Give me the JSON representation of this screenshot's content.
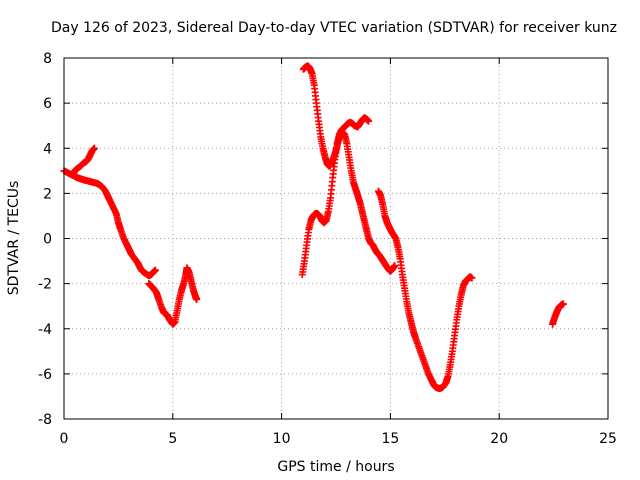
{
  "chart_data": {
    "type": "scatter",
    "title": "Day 126 of 2023, Sidereal Day-to-day VTEC variation (SDTVAR) for receiver kunz",
    "xlabel": "GPS time / hours",
    "ylabel": "SDTVAR / TECUs",
    "xlim": [
      0,
      25
    ],
    "ylim": [
      -8,
      8
    ],
    "xticks": [
      0,
      5,
      10,
      15,
      20,
      25
    ],
    "yticks": [
      -8,
      -6,
      -4,
      -2,
      0,
      2,
      4,
      6,
      8
    ],
    "xtick_labels": [
      "0",
      "5",
      "10",
      "15",
      "20",
      "25"
    ],
    "ytick_labels": [
      "-8",
      "-6",
      "-4",
      "-2",
      "0",
      "2",
      "4",
      "6",
      "8"
    ],
    "grid": true,
    "marker": "plus",
    "color": "#ff0000",
    "series": [
      {
        "segments": [
          [
            [
              0.0,
              3.0
            ],
            [
              0.2,
              2.9
            ],
            [
              0.4,
              2.8
            ],
            [
              0.5,
              3.0
            ],
            [
              0.6,
              3.1
            ],
            [
              0.75,
              3.2
            ],
            [
              0.9,
              3.35
            ],
            [
              1.0,
              3.4
            ],
            [
              1.1,
              3.5
            ],
            [
              1.2,
              3.7
            ],
            [
              1.3,
              3.9
            ],
            [
              1.4,
              4.0
            ]
          ],
          [
            [
              0.4,
              2.85
            ],
            [
              0.5,
              2.75
            ],
            [
              0.6,
              2.7
            ],
            [
              0.75,
              2.65
            ],
            [
              0.9,
              2.6
            ],
            [
              1.1,
              2.55
            ],
            [
              1.3,
              2.5
            ],
            [
              1.5,
              2.45
            ],
            [
              1.6,
              2.4
            ],
            [
              1.75,
              2.3
            ],
            [
              1.9,
              2.1
            ],
            [
              2.0,
              1.9
            ],
            [
              2.1,
              1.7
            ],
            [
              2.25,
              1.4
            ],
            [
              2.4,
              1.1
            ],
            [
              2.5,
              0.7
            ],
            [
              2.6,
              0.4
            ],
            [
              2.75,
              0.0
            ],
            [
              2.9,
              -0.3
            ],
            [
              3.0,
              -0.5
            ],
            [
              3.1,
              -0.7
            ],
            [
              3.25,
              -0.9
            ],
            [
              3.4,
              -1.1
            ],
            [
              3.5,
              -1.3
            ],
            [
              3.6,
              -1.45
            ],
            [
              3.75,
              -1.55
            ],
            [
              3.9,
              -1.65
            ],
            [
              4.0,
              -1.6
            ],
            [
              4.1,
              -1.5
            ],
            [
              4.2,
              -1.4
            ]
          ],
          [
            [
              3.9,
              -2.0
            ],
            [
              4.0,
              -2.1
            ],
            [
              4.1,
              -2.2
            ],
            [
              4.25,
              -2.4
            ],
            [
              4.35,
              -2.7
            ],
            [
              4.5,
              -3.1
            ],
            [
              4.6,
              -3.3
            ],
            [
              4.75,
              -3.4
            ],
            [
              4.85,
              -3.6
            ],
            [
              5.0,
              -3.8
            ],
            [
              5.1,
              -3.7
            ],
            [
              5.2,
              -3.2
            ],
            [
              5.3,
              -2.7
            ],
            [
              5.4,
              -2.3
            ],
            [
              5.5,
              -2.0
            ],
            [
              5.6,
              -1.6
            ],
            [
              5.65,
              -1.3
            ],
            [
              5.75,
              -1.5
            ],
            [
              5.85,
              -1.9
            ],
            [
              5.95,
              -2.3
            ],
            [
              6.05,
              -2.6
            ],
            [
              6.1,
              -2.7
            ]
          ],
          [
            [
              10.95,
              -1.6
            ],
            [
              11.05,
              -1.0
            ],
            [
              11.15,
              -0.3
            ],
            [
              11.25,
              0.4
            ],
            [
              11.35,
              0.8
            ],
            [
              11.45,
              1.0
            ],
            [
              11.55,
              1.1
            ],
            [
              11.65,
              1.1
            ],
            [
              11.75,
              1.0
            ],
            [
              11.85,
              0.8
            ],
            [
              11.95,
              0.7
            ],
            [
              12.05,
              0.8
            ],
            [
              12.15,
              1.2
            ],
            [
              12.25,
              1.8
            ],
            [
              12.35,
              2.7
            ],
            [
              12.45,
              3.5
            ],
            [
              12.55,
              4.2
            ],
            [
              12.65,
              4.6
            ],
            [
              12.75,
              4.8
            ],
            [
              12.85,
              4.9
            ],
            [
              12.95,
              5.0
            ],
            [
              13.05,
              5.1
            ],
            [
              13.15,
              5.15
            ],
            [
              13.25,
              5.1
            ],
            [
              13.35,
              5.0
            ],
            [
              13.5,
              4.95
            ],
            [
              13.6,
              5.1
            ],
            [
              13.7,
              5.25
            ],
            [
              13.8,
              5.35
            ],
            [
              13.9,
              5.3
            ],
            [
              14.0,
              5.2
            ]
          ],
          [
            [
              11.0,
              7.5
            ],
            [
              11.1,
              7.6
            ],
            [
              11.2,
              7.65
            ],
            [
              11.3,
              7.55
            ],
            [
              11.4,
              7.3
            ],
            [
              11.5,
              6.8
            ],
            [
              11.6,
              6.0
            ],
            [
              11.7,
              5.2
            ],
            [
              11.8,
              4.5
            ],
            [
              11.9,
              4.0
            ],
            [
              12.0,
              3.6
            ],
            [
              12.1,
              3.3
            ],
            [
              12.2,
              3.2
            ],
            [
              12.3,
              3.35
            ],
            [
              12.4,
              3.6
            ],
            [
              12.5,
              3.9
            ],
            [
              12.6,
              4.3
            ],
            [
              12.7,
              4.6
            ],
            [
              12.8,
              4.7
            ],
            [
              12.9,
              4.6
            ],
            [
              13.0,
              4.2
            ],
            [
              13.1,
              3.6
            ],
            [
              13.2,
              3.0
            ],
            [
              13.3,
              2.5
            ],
            [
              13.4,
              2.2
            ],
            [
              13.5,
              1.9
            ],
            [
              13.6,
              1.6
            ],
            [
              13.7,
              1.2
            ],
            [
              13.8,
              0.8
            ],
            [
              13.9,
              0.4
            ],
            [
              14.0,
              0.0
            ],
            [
              14.1,
              -0.2
            ],
            [
              14.2,
              -0.3
            ],
            [
              14.3,
              -0.5
            ],
            [
              14.4,
              -0.65
            ],
            [
              14.5,
              -0.75
            ],
            [
              14.6,
              -0.9
            ],
            [
              14.7,
              -1.05
            ],
            [
              14.8,
              -1.2
            ],
            [
              14.9,
              -1.35
            ],
            [
              15.0,
              -1.45
            ],
            [
              15.1,
              -1.35
            ],
            [
              15.2,
              -1.2
            ]
          ],
          [
            [
              14.45,
              2.1
            ],
            [
              14.55,
              1.9
            ],
            [
              14.65,
              1.5
            ],
            [
              14.75,
              1.0
            ],
            [
              14.85,
              0.7
            ],
            [
              14.95,
              0.5
            ],
            [
              15.05,
              0.3
            ],
            [
              15.15,
              0.15
            ],
            [
              15.25,
              0.0
            ],
            [
              15.35,
              -0.4
            ],
            [
              15.45,
              -0.9
            ],
            [
              15.55,
              -1.6
            ],
            [
              15.65,
              -2.2
            ],
            [
              15.75,
              -2.8
            ],
            [
              15.85,
              -3.3
            ],
            [
              15.95,
              -3.7
            ],
            [
              16.05,
              -4.1
            ],
            [
              16.15,
              -4.4
            ],
            [
              16.3,
              -4.8
            ],
            [
              16.45,
              -5.2
            ],
            [
              16.6,
              -5.6
            ],
            [
              16.75,
              -6.0
            ],
            [
              16.9,
              -6.3
            ],
            [
              17.0,
              -6.5
            ],
            [
              17.1,
              -6.6
            ],
            [
              17.25,
              -6.65
            ],
            [
              17.4,
              -6.6
            ],
            [
              17.55,
              -6.4
            ],
            [
              17.65,
              -6.1
            ],
            [
              17.75,
              -5.6
            ],
            [
              17.85,
              -5.0
            ],
            [
              17.95,
              -4.3
            ],
            [
              18.05,
              -3.6
            ],
            [
              18.15,
              -3.0
            ],
            [
              18.25,
              -2.5
            ],
            [
              18.35,
              -2.1
            ],
            [
              18.45,
              -1.9
            ],
            [
              18.55,
              -1.8
            ],
            [
              18.65,
              -1.7
            ],
            [
              18.75,
              -1.75
            ]
          ],
          [
            [
              22.45,
              -3.8
            ],
            [
              22.55,
              -3.5
            ],
            [
              22.65,
              -3.25
            ],
            [
              22.75,
              -3.05
            ],
            [
              22.85,
              -2.95
            ],
            [
              22.95,
              -2.9
            ]
          ]
        ]
      }
    ]
  }
}
